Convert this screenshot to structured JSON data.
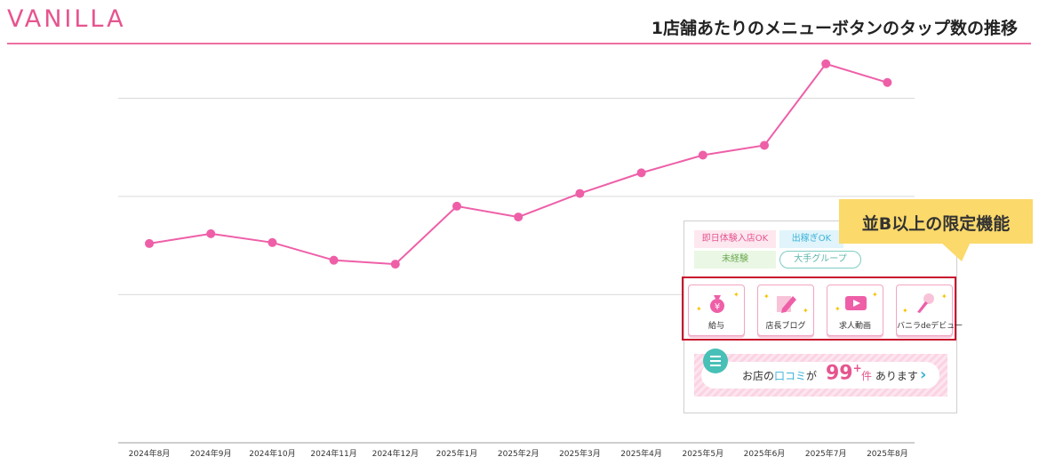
{
  "header": {
    "logo": "VANILLA",
    "title": "1店舗あたりのメニューボタンのタップ数の推移"
  },
  "colors": {
    "brand": "#e6558f",
    "line": "#ee5fa8",
    "highlight_border": "#c8102e",
    "callout": "#fbd96a"
  },
  "chart_data": {
    "type": "line",
    "title": "1店舗あたりのメニューボタンのタップ数の推移",
    "categories": [
      "2024年8月",
      "2024年9月",
      "2024年10月",
      "2024年11月",
      "2024年12月",
      "2025年1月",
      "2025年2月",
      "2025年3月",
      "2025年4月",
      "2025年5月",
      "2025年6月",
      "2025年7月",
      "2025年8月"
    ],
    "series": [
      {
        "values": [
          2.02,
          2.12,
          2.03,
          1.85,
          1.81,
          2.4,
          2.29,
          2.53,
          2.74,
          2.92,
          3.02,
          3.85,
          3.66
        ]
      }
    ],
    "ylim": [
      0,
      4.5
    ],
    "gridlines": [
      1.5,
      2.5,
      3.5
    ],
    "grid": true,
    "y_tick_labels_shown": false,
    "xlabel": "",
    "ylabel": ""
  },
  "inset": {
    "tags": [
      "即日体験入店OK",
      "出稼ぎOK",
      "未経験",
      "大手グループ"
    ],
    "menu_buttons": [
      {
        "label": "給与",
        "icon": "money-bag-icon"
      },
      {
        "label": "店長ブログ",
        "icon": "pencil-icon"
      },
      {
        "label": "求人動画",
        "icon": "video-play-icon"
      },
      {
        "label": "バニラdeデビュー",
        "icon": "microphone-icon"
      }
    ],
    "review": {
      "prefix": "お店の",
      "keyword": "口コミ",
      "particle": "が",
      "count": "99",
      "count_sup": "+",
      "unit": "件",
      "suffix": "あります"
    }
  },
  "callout": {
    "text": "並B以上の限定機能"
  }
}
